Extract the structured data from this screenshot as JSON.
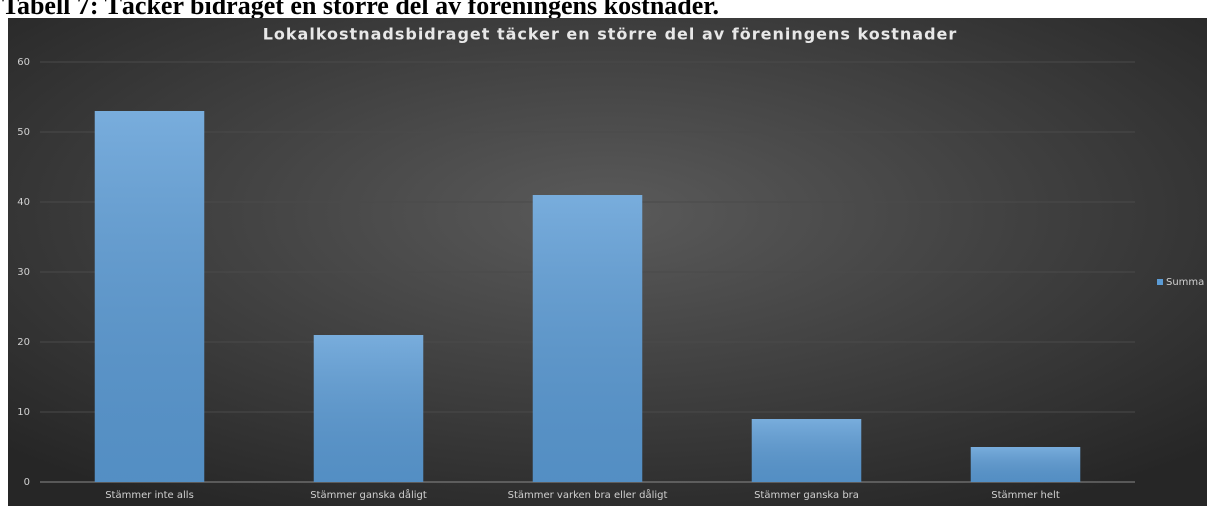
{
  "caption": "Tabell 7: Täcker bidraget en större del av föreningens kostnader.",
  "chart_data": {
    "type": "bar",
    "title": "Lokalkostnadsbidraget täcker en större del av föreningens kostnader",
    "categories": [
      "Stämmer inte alls",
      "Stämmer ganska dåligt",
      "Stämmer varken bra eller dåligt",
      "Stämmer ganska bra",
      "Stämmer helt"
    ],
    "series": [
      {
        "name": "Summa",
        "color": "#5b9bd5",
        "values": [
          53,
          21,
          41,
          9,
          5
        ]
      }
    ],
    "ylim": [
      0,
      60
    ],
    "yticks": [
      0,
      10,
      20,
      30,
      40,
      50,
      60
    ],
    "grid": true,
    "legend": "right"
  }
}
